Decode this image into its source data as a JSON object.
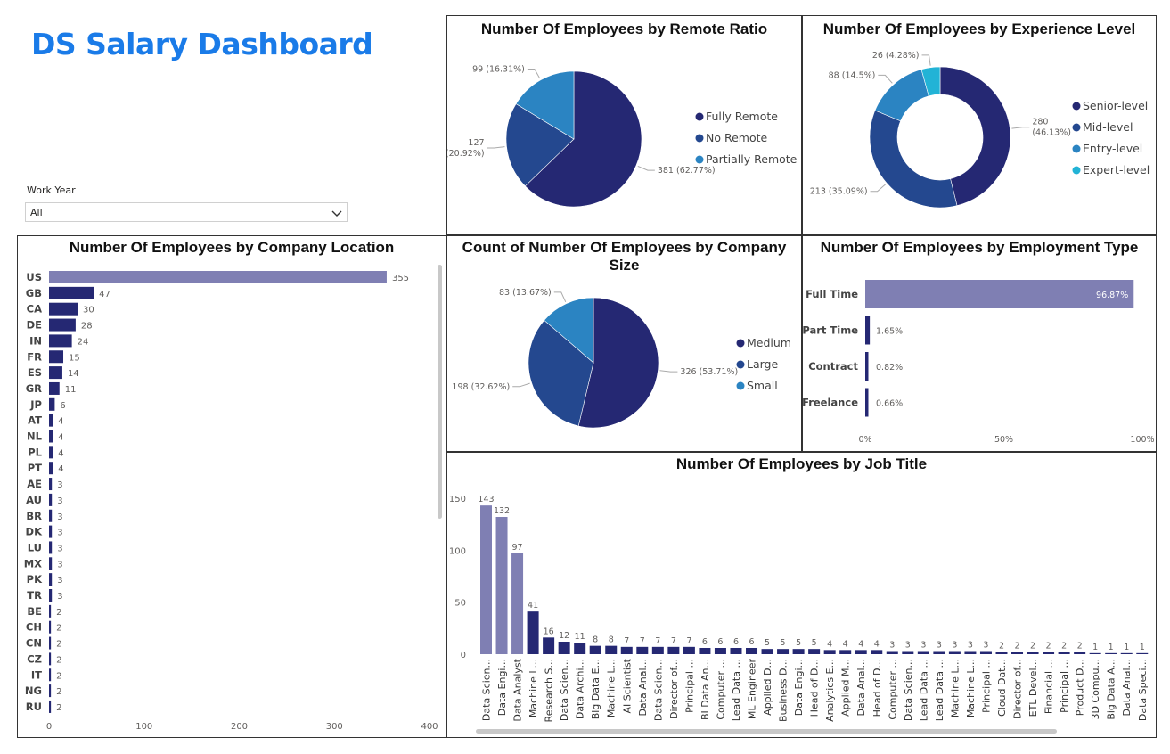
{
  "dashboard": {
    "title": "DS Salary Dashboard"
  },
  "slicer": {
    "label": "Work Year",
    "value": "All"
  },
  "colors": {
    "title": "#1a7be8",
    "navy": "#252873",
    "blue": "#24488f",
    "mid_blue": "#2b84c2",
    "cyan": "#22b3d6",
    "lavender": "#7f7fb3"
  },
  "remote_chart": {
    "title": "Number Of Employees by Remote Ratio",
    "chart_data": {
      "type": "pie",
      "title": "Number Of Employees by Remote Ratio",
      "slices": [
        {
          "name": "Fully Remote",
          "value": 381,
          "label": "381 (62.77%)",
          "color": "#252873"
        },
        {
          "name": "No Remote",
          "value": 127,
          "label": "127 (20.92%)",
          "color": "#24488f"
        },
        {
          "name": "Partially Remote",
          "value": 99,
          "label": "99 (16.31%)",
          "color": "#2b84c2"
        }
      ],
      "legend_position": "right"
    }
  },
  "experience_chart": {
    "title": "Number Of Employees by Experience Level",
    "chart_data": {
      "type": "pie",
      "donut": true,
      "title": "Number Of Employees by Experience Level",
      "slices": [
        {
          "name": "Senior-level",
          "value": 280,
          "label": "280 (46.13%)",
          "color": "#252873"
        },
        {
          "name": "Mid-level",
          "value": 213,
          "label": "213 (35.09%)",
          "color": "#24488f"
        },
        {
          "name": "Entry-level",
          "value": 88,
          "label": "88 (14.5%)",
          "color": "#2b84c2"
        },
        {
          "name": "Expert-level",
          "value": 26,
          "label": "26 (4.28%)",
          "color": "#22b3d6"
        }
      ],
      "legend_position": "right"
    }
  },
  "size_chart": {
    "title": "Count of Number Of Employees by Company Size",
    "chart_data": {
      "type": "pie",
      "title": "Count of Number Of Employees by Company Size",
      "slices": [
        {
          "name": "Medium",
          "value": 326,
          "label": "326 (53.71%)",
          "color": "#252873"
        },
        {
          "name": "Large",
          "value": 198,
          "label": "198 (32.62%)",
          "color": "#24488f"
        },
        {
          "name": "Small",
          "value": 83,
          "label": "83 (13.67%)",
          "color": "#2b84c2"
        }
      ],
      "legend_position": "right"
    }
  },
  "employment_chart": {
    "title": "Number Of Employees by Employment Type",
    "chart_data": {
      "type": "bar",
      "orientation": "horizontal",
      "title": "Number Of Employees by Employment Type",
      "categories": [
        "Full Time",
        "Part Time",
        "Contract",
        "Freelance"
      ],
      "values": [
        96.87,
        1.65,
        0.82,
        0.66
      ],
      "value_labels": [
        "96.87%",
        "1.65%",
        "0.82%",
        "0.66%"
      ],
      "xlim": [
        0,
        100
      ],
      "x_ticks": [
        "0%",
        "50%",
        "100%"
      ],
      "highlight_color": "#7f7fb3",
      "color": "#252873"
    }
  },
  "location_chart": {
    "title": "Number Of Employees by Company Location",
    "chart_data": {
      "type": "bar",
      "orientation": "horizontal",
      "title": "Number Of Employees by Company Location",
      "categories": [
        "US",
        "GB",
        "CA",
        "DE",
        "IN",
        "FR",
        "ES",
        "GR",
        "JP",
        "AT",
        "NL",
        "PL",
        "PT",
        "AE",
        "AU",
        "BR",
        "DK",
        "LU",
        "MX",
        "PK",
        "TR",
        "BE",
        "CH",
        "CN",
        "CZ",
        "IT",
        "NG",
        "RU"
      ],
      "values": [
        355,
        47,
        30,
        28,
        24,
        15,
        14,
        11,
        6,
        4,
        4,
        4,
        4,
        3,
        3,
        3,
        3,
        3,
        3,
        3,
        3,
        2,
        2,
        2,
        2,
        2,
        2,
        2
      ],
      "xlim": [
        0,
        400
      ],
      "x_ticks": [
        0,
        100,
        200,
        300,
        400
      ],
      "highlight_color": "#7f7fb3",
      "color": "#252873"
    }
  },
  "jobtitle_chart": {
    "title": "Number Of Employees by Job Title",
    "chart_data": {
      "type": "bar",
      "orientation": "vertical",
      "title": "Number Of Employees by Job Title",
      "categories": [
        "Data Scien...",
        "Data Engi...",
        "Data Analyst",
        "Machine L...",
        "Research S...",
        "Data Scien...",
        "Data Archi...",
        "Big Data E...",
        "Machine L...",
        "AI Scientist",
        "Data Anal...",
        "Data Scien...",
        "Director of...",
        "Principal ...",
        "BI Data An...",
        "Computer ...",
        "Lead Data ...",
        "ML Engineer",
        "Applied D...",
        "Business D...",
        "Data Engi...",
        "Head of D...",
        "Analytics E...",
        "Applied M...",
        "Data Anal...",
        "Head of D...",
        "Computer ...",
        "Data Scien...",
        "Lead Data ...",
        "Lead Data ...",
        "Machine L...",
        "Machine L...",
        "Principal ...",
        "Cloud Dat...",
        "Director of...",
        "ETL Devel...",
        "Financial ...",
        "Principal ...",
        "Product D...",
        "3D Compu...",
        "Big Data A...",
        "Data Anal...",
        "Data Speci..."
      ],
      "values": [
        143,
        132,
        97,
        41,
        16,
        12,
        11,
        8,
        8,
        7,
        7,
        7,
        7,
        7,
        6,
        6,
        6,
        6,
        5,
        5,
        5,
        5,
        4,
        4,
        4,
        4,
        3,
        3,
        3,
        3,
        3,
        3,
        3,
        2,
        2,
        2,
        2,
        2,
        2,
        1,
        1,
        1,
        1
      ],
      "ylim": [
        0,
        150
      ],
      "y_ticks": [
        0,
        50,
        100,
        150
      ],
      "highlight_count": 3,
      "highlight_color": "#7f7fb3",
      "color": "#252873"
    }
  }
}
